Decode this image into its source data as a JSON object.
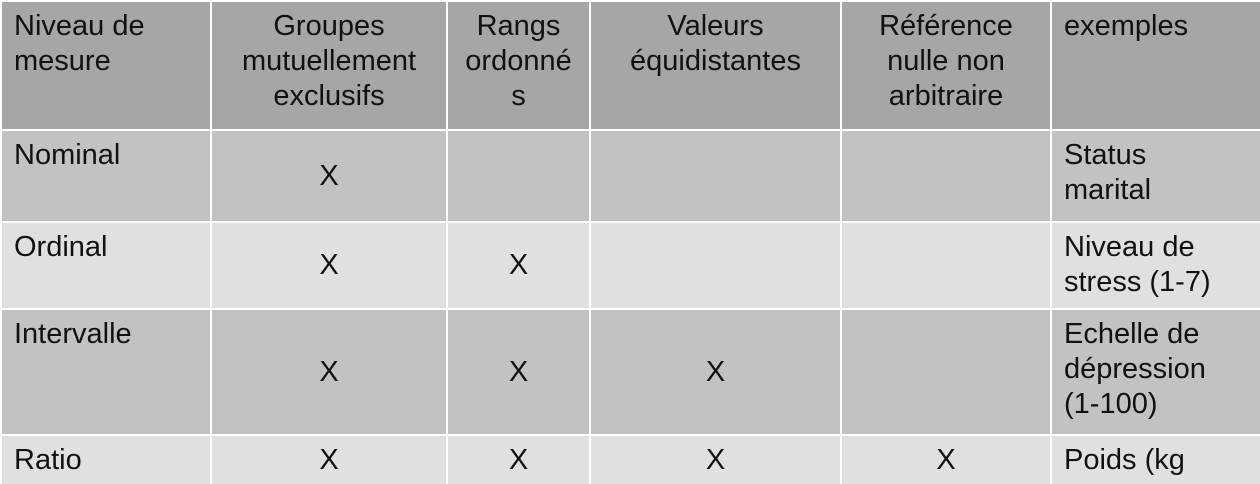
{
  "table": {
    "header": [
      "Niveau de\nmesure",
      "Groupes\nmutuellement\nexclusifs",
      "Rangs\nordonné\ns",
      "Valeurs\néquidistantes",
      "Référence\nnulle non\narbitraire",
      "exemples"
    ],
    "rows": [
      {
        "level": "Nominal",
        "marks": [
          "X",
          "",
          "",
          ""
        ],
        "example": "Status\nmarital"
      },
      {
        "level": "Ordinal",
        "marks": [
          "X",
          "X",
          "",
          ""
        ],
        "example": "Niveau de\nstress (1-7)"
      },
      {
        "level": "Intervalle",
        "marks": [
          "X",
          "X",
          "X",
          ""
        ],
        "example": "Echelle de\ndépression\n(1-100)"
      },
      {
        "level": "Ratio",
        "marks": [
          "X",
          "X",
          "X",
          "X"
        ],
        "example": "Poids (kg"
      }
    ]
  }
}
